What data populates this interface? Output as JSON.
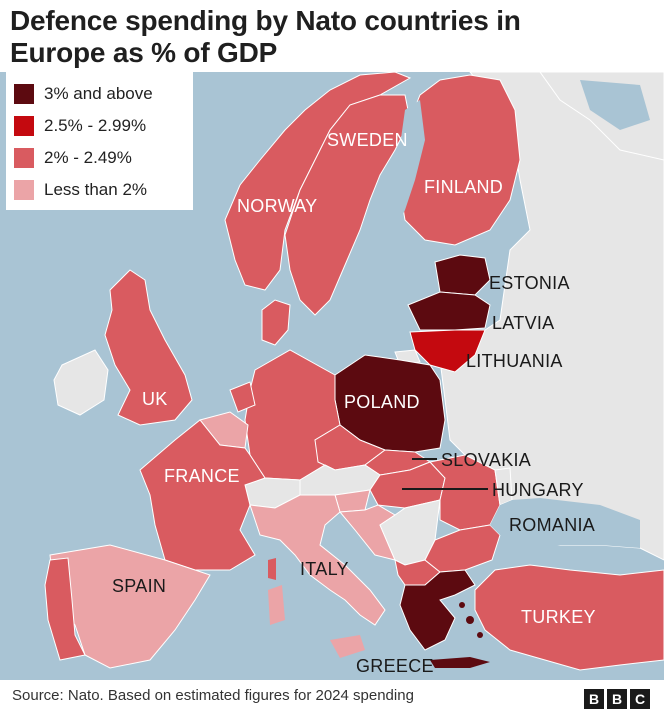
{
  "title": {
    "line1": "Defence spending by Nato countries in",
    "line2": "Europe as % of GDP"
  },
  "legend": [
    {
      "label": "3% and above",
      "color": "#5c0a10"
    },
    {
      "label": "2.5% - 2.99%",
      "color": "#c4090f"
    },
    {
      "label": "2% - 2.49%",
      "color": "#d95b60"
    },
    {
      "label": "Less than 2%",
      "color": "#eba4a7"
    }
  ],
  "colors": {
    "sea": "#a9c4d4",
    "non_nato": "#e6e6e6",
    "border": "#ffffff"
  },
  "countries": {
    "sweden": "SWEDEN",
    "finland": "FINLAND",
    "norway": "NORWAY",
    "estonia": "ESTONIA",
    "latvia": "LATVIA",
    "lithuania": "LITHUANIA",
    "poland": "POLAND",
    "uk": "UK",
    "france": "FRANCE",
    "slovakia": "SLOVAKIA",
    "hungary": "HUNGARY",
    "romania": "ROMANIA",
    "italy": "ITALY",
    "spain": "SPAIN",
    "turkey": "TURKEY",
    "greece": "GREECE"
  },
  "footer": {
    "source": "Source: Nato. Based on estimated figures for 2024 spending",
    "logo": [
      "B",
      "B",
      "C"
    ]
  }
}
